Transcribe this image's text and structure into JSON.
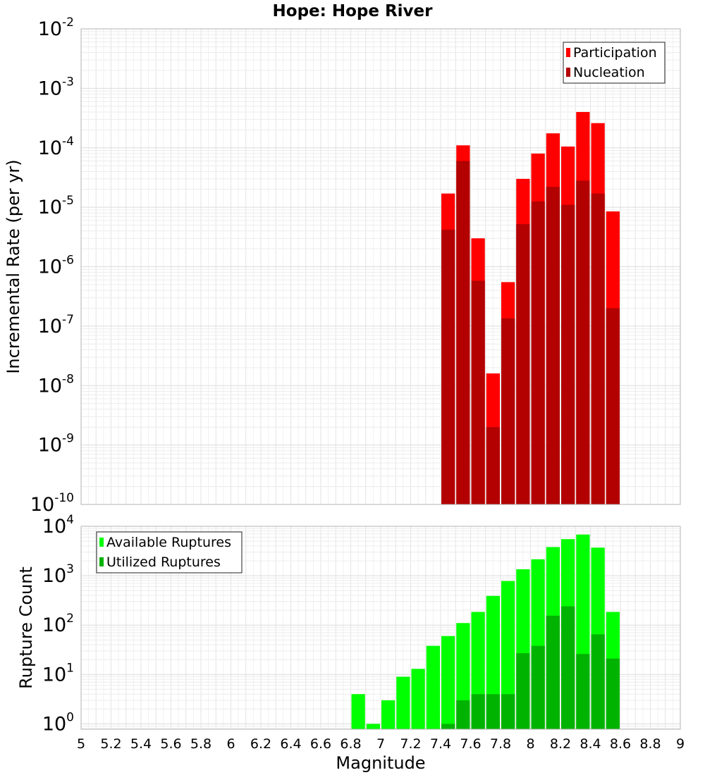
{
  "chart_data": [
    {
      "type": "bar",
      "title": "Hope: Hope River",
      "xlabel": "",
      "ylabel": "Incremental Rate (per yr)",
      "y_scale": "log",
      "xlim": [
        5,
        9
      ],
      "ylim": [
        1e-10,
        0.01
      ],
      "y_tick_exponents": [
        -10,
        -9,
        -8,
        -7,
        -6,
        -5,
        -4,
        -3,
        -2
      ],
      "grid": true,
      "legend_position": "top-right",
      "bar_width": 0.1,
      "colors": {
        "Participation": "#ff0000",
        "Nucleation": "#b30000"
      },
      "x": [
        7.45,
        7.55,
        7.65,
        7.75,
        7.85,
        7.95,
        8.05,
        8.15,
        8.25,
        8.35,
        8.45,
        8.55
      ],
      "series": [
        {
          "name": "Participation",
          "values": [
            1.7e-05,
            0.00011,
            3e-06,
            1.6e-08,
            5.5e-07,
            3e-05,
            8e-05,
            0.000175,
            0.000105,
            0.0004,
            0.00026,
            8.5e-06
          ]
        },
        {
          "name": "Nucleation",
          "values": [
            4.2e-06,
            6e-05,
            5.8e-07,
            2e-09,
            1.35e-07,
            5.2e-06,
            1.25e-05,
            2.2e-05,
            1.1e-05,
            2.8e-05,
            1.7e-05,
            2e-07
          ]
        }
      ]
    },
    {
      "type": "bar",
      "title": "",
      "xlabel": "Magnitude",
      "ylabel": "Rupture Count",
      "y_scale": "log",
      "xlim": [
        5,
        9
      ],
      "ylim": [
        0.78,
        10000
      ],
      "y_tick_exponents": [
        0,
        1,
        2,
        3,
        4
      ],
      "grid": true,
      "legend_position": "top-left",
      "bar_width": 0.1,
      "x_ticks": [
        "5",
        "5.2",
        "5.4",
        "5.6",
        "5.8",
        "6",
        "6.2",
        "6.4",
        "6.6",
        "6.8",
        "7",
        "7.2",
        "7.4",
        "7.6",
        "7.8",
        "8",
        "8.2",
        "8.4",
        "8.6",
        "8.8",
        "9"
      ],
      "colors": {
        "Available Ruptures": "#00ff00",
        "Utilized Ruptures": "#00b300"
      },
      "x": [
        6.85,
        6.95,
        7.05,
        7.15,
        7.25,
        7.35,
        7.45,
        7.55,
        7.65,
        7.75,
        7.85,
        7.95,
        8.05,
        8.15,
        8.25,
        8.35,
        8.45,
        8.55
      ],
      "series": [
        {
          "name": "Available Ruptures",
          "values": [
            4,
            1,
            3,
            9,
            13,
            38,
            60,
            110,
            185,
            390,
            780,
            1350,
            2150,
            3800,
            5500,
            6800,
            3700,
            185
          ]
        },
        {
          "name": "Utilized Ruptures",
          "values": [
            null,
            null,
            null,
            null,
            null,
            null,
            1,
            3,
            4,
            4,
            4,
            27,
            38,
            155,
            240,
            26,
            65,
            21
          ]
        }
      ]
    }
  ]
}
